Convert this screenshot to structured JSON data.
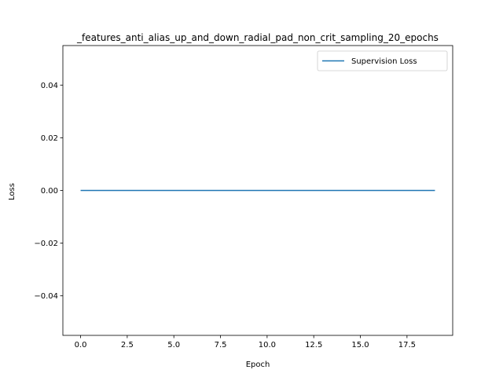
{
  "chart_data": {
    "type": "line",
    "title": "_features_anti_alias_up_and_down_radial_pad_non_crit_sampling_20_epochs",
    "xlabel": "Epoch",
    "ylabel": "Loss",
    "xlim": [
      -0.95,
      19.95
    ],
    "ylim": [
      -0.055,
      0.055
    ],
    "xticks": [
      0.0,
      2.5,
      5.0,
      7.5,
      10.0,
      12.5,
      15.0,
      17.5
    ],
    "xtick_labels": [
      "0.0",
      "2.5",
      "5.0",
      "7.5",
      "10.0",
      "12.5",
      "15.0",
      "17.5"
    ],
    "yticks": [
      -0.04,
      -0.02,
      0.0,
      0.02,
      0.04
    ],
    "ytick_labels": [
      "−0.04",
      "−0.02",
      "0.00",
      "0.02",
      "0.04"
    ],
    "grid": false,
    "legend_position": "upper right",
    "series": [
      {
        "name": "Supervision Loss",
        "color": "#1f77b4",
        "x": [
          0,
          1,
          2,
          3,
          4,
          5,
          6,
          7,
          8,
          9,
          10,
          11,
          12,
          13,
          14,
          15,
          16,
          17,
          18,
          19
        ],
        "y": [
          0,
          0,
          0,
          0,
          0,
          0,
          0,
          0,
          0,
          0,
          0,
          0,
          0,
          0,
          0,
          0,
          0,
          0,
          0,
          0
        ]
      }
    ]
  }
}
